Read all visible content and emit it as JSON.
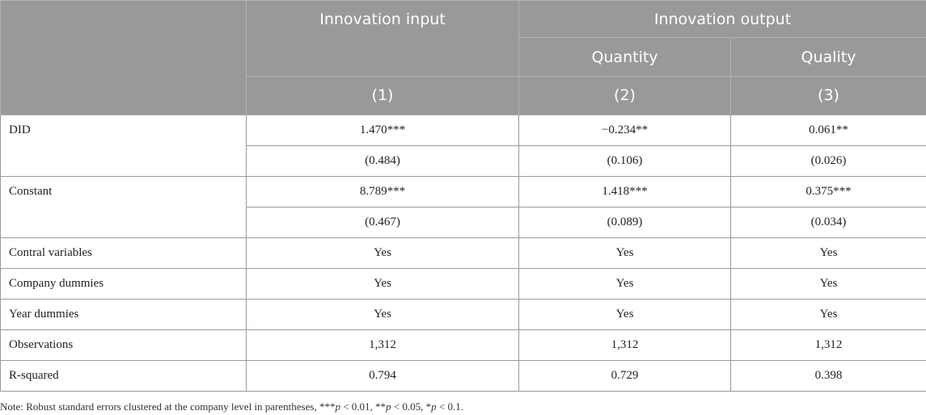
{
  "header": {
    "group1": "Innovation input",
    "group2": "Innovation output",
    "sub_quantity": "Quantity",
    "sub_quality": "Quality",
    "col1": "(1)",
    "col2": "(2)",
    "col3": "(3)"
  },
  "rows": {
    "did": {
      "label": "DID",
      "coef": [
        "1.470***",
        "−0.234**",
        "0.061**"
      ],
      "se": [
        "(0.484)",
        "(0.106)",
        "(0.026)"
      ]
    },
    "constant": {
      "label": "Constant",
      "coef": [
        "8.789***",
        "1.418***",
        "0.375***"
      ],
      "se": [
        "(0.467)",
        "(0.089)",
        "(0.034)"
      ]
    },
    "control": {
      "label": "Contral variables",
      "vals": [
        "Yes",
        "Yes",
        "Yes"
      ]
    },
    "company": {
      "label": "Company dummies",
      "vals": [
        "Yes",
        "Yes",
        "Yes"
      ]
    },
    "year": {
      "label": "Year dummies",
      "vals": [
        "Yes",
        "Yes",
        "Yes"
      ]
    },
    "obs": {
      "label": "Observations",
      "vals": [
        "1,312",
        "1,312",
        "1,312"
      ]
    },
    "r2": {
      "label": "R-squared",
      "vals": [
        "0.794",
        "0.729",
        "0.398"
      ]
    }
  },
  "note": {
    "prefix": "Note: Robust standard errors clustered at the company level in parentheses, ",
    "s1": "***",
    "p1": "p",
    "t1": " < 0.01, ",
    "s2": "**",
    "p2": "p",
    "t2": " < 0.05, ",
    "s3": "*",
    "p3": "p",
    "t3": " < 0.1."
  }
}
